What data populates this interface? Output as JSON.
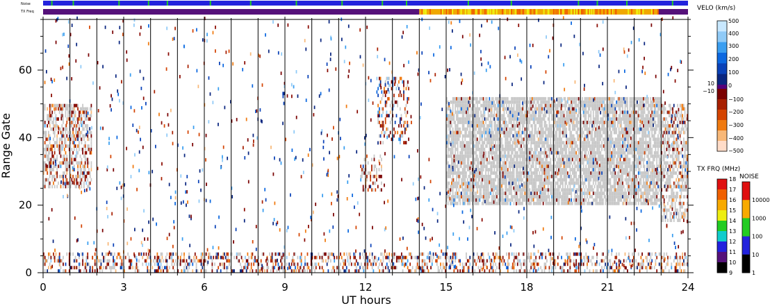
{
  "chart_data": {
    "type": "heatmap",
    "xlabel": "UT hours",
    "ylabel": "Range Gate",
    "xlim": [
      0,
      24
    ],
    "ylim": [
      0,
      75
    ],
    "x_ticks": [
      "0",
      "3",
      "6",
      "9",
      "12",
      "15",
      "18",
      "21",
      "24"
    ],
    "y_ticks": [
      "0",
      "20",
      "40",
      "60"
    ],
    "grid": "vertical lines every hour",
    "top_strips": [
      {
        "label": "Noise",
        "base_color": "#2222dd",
        "accent_color": "#22cc22",
        "accent_hours": [
          0.3,
          1.1,
          2.8,
          3.9,
          4.6,
          6.2,
          7.7,
          9.4,
          11.1,
          12.6,
          13.5,
          15.8,
          17.4,
          19.9,
          20.6,
          21.7,
          23.4
        ]
      },
      {
        "label": "TX Freq",
        "segments": [
          {
            "from": 0,
            "to": 14,
            "color": "#55117a"
          },
          {
            "from": 14,
            "to": 22.9,
            "color": "#f0a800"
          },
          {
            "from": 22.9,
            "to": 24,
            "color": "#55117a"
          }
        ]
      }
    ],
    "velocity_colorbar": {
      "title": "VELO (km/s)",
      "labels": [
        "500",
        "400",
        "300",
        "200",
        "100",
        "0",
        "10",
        "−10",
        "−100",
        "−200",
        "−300",
        "−400",
        "−500"
      ],
      "colors": [
        "#c8e8ff",
        "#8fcaf7",
        "#3a9ef0",
        "#0c68e0",
        "#0a42b8",
        "#0a2680",
        "#54007a",
        "#7a0000",
        "#a82000",
        "#d44400",
        "#f07a10",
        "#f8b878",
        "#ffdcc8"
      ]
    },
    "txfreq_colorbar": {
      "title": "TX FRQ (MHz)",
      "labels": [
        "9",
        "10",
        "11",
        "12",
        "13",
        "14",
        "15",
        "16",
        "17",
        "18"
      ],
      "colors": [
        "#000000",
        "#55117a",
        "#2222dd",
        "#11cccc",
        "#22cc22",
        "#eeee11",
        "#f8aa00",
        "#f06000",
        "#e01010"
      ]
    },
    "noise_colorbar": {
      "title": "NOISE",
      "labels": [
        "1",
        "10",
        "100",
        "1000",
        "10000"
      ],
      "colors": [
        "#000000",
        "#2222dd",
        "#22cc22",
        "#f8aa00",
        "#e01010"
      ]
    },
    "ground_scatter_color": "#c8c8c8",
    "scatter_regions": [
      {
        "name": "early",
        "x": [
          0,
          1.8
        ],
        "y": [
          25,
          50
        ],
        "ground": 0.35,
        "neg": 0.55,
        "pos": 0.05
      },
      {
        "name": "midday-upper",
        "x": [
          12.4,
          13.6
        ],
        "y": [
          38,
          58
        ],
        "ground": 0.05,
        "neg": 0.45,
        "pos": 0.3
      },
      {
        "name": "midday-lower",
        "x": [
          11.8,
          12.6
        ],
        "y": [
          24,
          35
        ],
        "ground": 0.1,
        "neg": 0.6,
        "pos": 0.05
      },
      {
        "name": "afternoon",
        "x": [
          15,
          23
        ],
        "y": [
          20,
          52
        ],
        "ground": 0.75,
        "neg": 0.12,
        "pos": 0.08
      },
      {
        "name": "late",
        "x": [
          23,
          24
        ],
        "y": [
          15,
          50
        ],
        "ground": 0.45,
        "neg": 0.4,
        "pos": 0.05
      },
      {
        "name": "near-range",
        "x": [
          0,
          24
        ],
        "y": [
          0,
          6
        ],
        "ground": 0.15,
        "neg": 0.5,
        "pos": 0.2
      }
    ]
  }
}
